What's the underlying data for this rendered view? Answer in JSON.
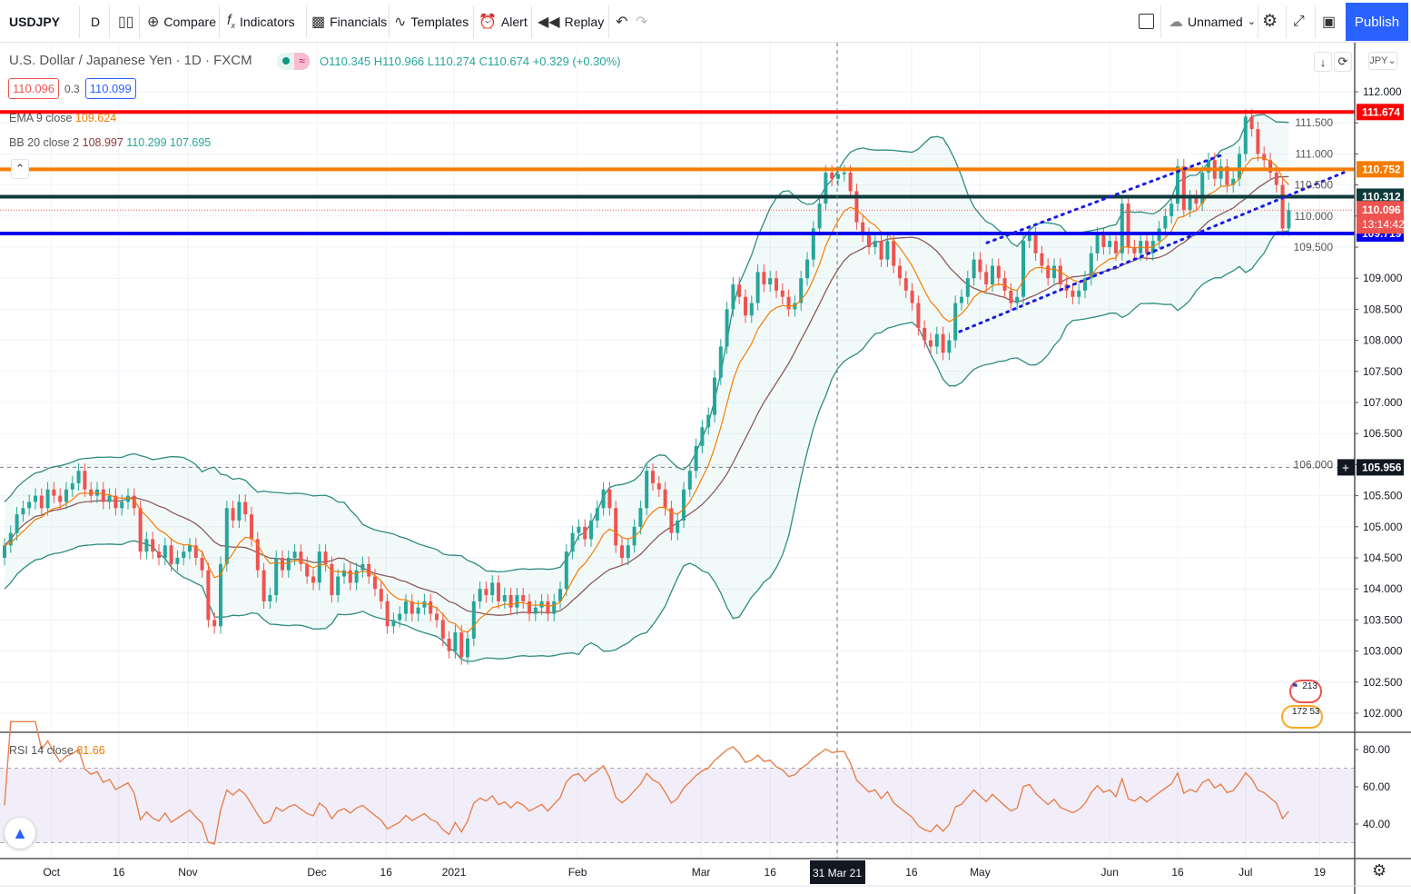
{
  "toolbar": {
    "symbol": "USDJPY",
    "interval": "D",
    "compare": "Compare",
    "indicators": "Indicators",
    "financials": "Financials",
    "templates": "Templates",
    "alert": "Alert",
    "replay": "Replay",
    "layout_name": "Unnamed",
    "publish": "Publish"
  },
  "legend": {
    "title": "U.S. Dollar / Japanese Yen · 1D · FXCM",
    "ohlc": "O110.345 H110.966 L110.274 C110.674 +0.329 (+0.30%)",
    "bid": "110.096",
    "spread": "0.3",
    "ask": "110.099",
    "ema_label": "EMA 9 close",
    "ema_value": "109.624",
    "bb_label": "BB 20 close 2",
    "bb_basis": "108.997",
    "bb_upper": "110.299",
    "bb_lower": "107.695",
    "rsi_label": "RSI 14 close",
    "rsi_value": "81.66"
  },
  "price_axis": {
    "currency": "JPY",
    "ticks": [
      "112.000",
      "111.500",
      "111.000",
      "110.500",
      "110.000",
      "109.500",
      "109.000",
      "108.500",
      "108.000",
      "107.500",
      "107.000",
      "106.500",
      "106.000",
      "105.500",
      "105.000",
      "104.500",
      "104.000",
      "103.500",
      "103.000",
      "102.500",
      "102.000"
    ],
    "last_price": "110.096",
    "countdown": "13:14:42",
    "crosshair_price": "105.956"
  },
  "rsi_axis": {
    "ticks": [
      "80.00",
      "60.00",
      "40.00"
    ]
  },
  "time_axis": {
    "ticks": [
      "Oct",
      "16",
      "Nov",
      "Dec",
      "16",
      "2021",
      "Feb",
      "Mar",
      "16",
      "31 Mar 21",
      "16",
      "May",
      "Jun",
      "16",
      "Jul",
      "19"
    ],
    "crosshair_label": "31 Mar 21"
  },
  "events": {
    "top": "213",
    "bottom_left": "172",
    "bottom_right": "53"
  },
  "colors": {
    "up": "#26a69a",
    "down": "#ef5350",
    "ema": "#f57c00",
    "bb_basis": "#8b5a5a",
    "bb_band": "#2e8b80",
    "rsi": "#e8804c",
    "accent": "#2962ff"
  },
  "chart_data": {
    "type": "candlestick",
    "symbol": "USDJPY",
    "interval": "1D",
    "ylim": [
      101.6,
      112.4
    ],
    "grid": true,
    "closes": [
      104.7,
      104.9,
      105.2,
      105.3,
      105.4,
      105.5,
      105.3,
      105.6,
      105.5,
      105.4,
      105.6,
      105.7,
      105.9,
      105.6,
      105.5,
      105.6,
      105.4,
      105.5,
      105.3,
      105.4,
      105.5,
      105.3,
      104.6,
      104.8,
      104.6,
      104.5,
      104.7,
      104.4,
      104.5,
      104.6,
      104.7,
      104.5,
      104.3,
      103.5,
      103.4,
      104.4,
      105.3,
      105.1,
      105.4,
      105.2,
      104.8,
      104.3,
      103.8,
      103.9,
      104.5,
      104.3,
      104.5,
      104.6,
      104.4,
      104.2,
      104.1,
      104.6,
      104.4,
      103.9,
      104.2,
      104.3,
      104.1,
      104.3,
      104.4,
      104.2,
      104.0,
      103.8,
      103.4,
      103.5,
      103.6,
      103.8,
      103.6,
      103.7,
      103.8,
      103.6,
      103.5,
      103.2,
      103.0,
      103.3,
      102.9,
      103.2,
      103.8,
      104.0,
      103.9,
      104.1,
      103.8,
      103.9,
      103.7,
      103.9,
      103.8,
      103.6,
      103.7,
      103.8,
      103.6,
      103.8,
      104.0,
      104.6,
      104.9,
      105.0,
      104.8,
      105.1,
      105.3,
      105.6,
      105.3,
      104.7,
      104.5,
      104.7,
      105.0,
      105.3,
      105.9,
      105.7,
      105.6,
      105.3,
      104.9,
      105.1,
      105.6,
      105.9,
      106.3,
      106.6,
      106.8,
      107.4,
      107.9,
      108.5,
      108.9,
      108.7,
      108.4,
      108.6,
      109.1,
      108.9,
      109.0,
      108.8,
      108.7,
      108.5,
      108.6,
      109.0,
      109.3,
      109.8,
      110.2,
      110.7,
      110.6,
      110.674,
      110.7,
      110.4,
      109.9,
      109.7,
      109.5,
      109.6,
      109.3,
      109.6,
      109.2,
      109.0,
      108.8,
      108.6,
      108.2,
      108.0,
      107.9,
      108.1,
      107.8,
      108.0,
      108.6,
      108.7,
      109.0,
      109.3,
      109.1,
      108.9,
      109.2,
      109.0,
      108.8,
      108.6,
      108.7,
      109.6,
      109.7,
      109.4,
      109.2,
      109.0,
      109.2,
      108.9,
      108.8,
      108.7,
      108.8,
      109.0,
      109.4,
      109.7,
      109.5,
      109.6,
      109.4,
      110.2,
      109.5,
      109.4,
      109.6,
      109.4,
      109.6,
      109.8,
      110.0,
      110.2,
      110.8,
      110.1,
      110.3,
      110.2,
      110.7,
      110.9,
      110.6,
      110.8,
      110.5,
      110.6,
      111.0,
      111.6,
      111.4,
      111.0,
      110.9,
      110.7,
      110.5,
      109.8,
      110.096
    ],
    "indicators": [
      "EMA 9 close",
      "BB 20 close 2",
      "RSI 14 close"
    ],
    "rsi_bands": [
      70,
      30
    ],
    "horizontal_lines": [
      {
        "price": 111.674,
        "label": "111.674",
        "color": "#ff0000"
      },
      {
        "price": 110.752,
        "label": "110.752",
        "color": "#f57c00"
      },
      {
        "price": 110.312,
        "label": "110.312",
        "color": "#0e3a3c"
      },
      {
        "price": 109.719,
        "label": "109.719",
        "color": "#0000ee"
      }
    ],
    "channel_lines": [
      {
        "start_price": 109.57,
        "end_price": 110.99,
        "color": "#1a1ae6"
      },
      {
        "start_price": 108.14,
        "end_price": 110.7,
        "color": "#1a1ae6"
      }
    ]
  }
}
